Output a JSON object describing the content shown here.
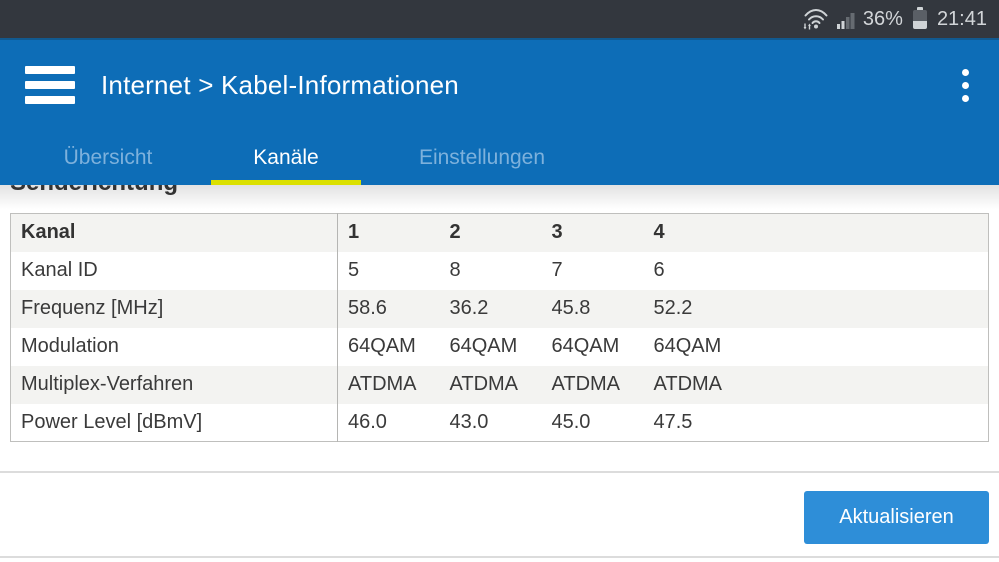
{
  "status_bar": {
    "battery_percent": "36%",
    "time": "21:41",
    "icons": [
      "wifi-arrows-icon",
      "mobile-signal-icon",
      "battery-icon"
    ]
  },
  "header": {
    "title": "Internet > Kabel-Informationen",
    "menu_icon": "hamburger-icon",
    "overflow_icon": "kebab-menu-icon",
    "tabs": [
      {
        "label": "Übersicht",
        "active": false
      },
      {
        "label": "Kanäle",
        "active": true
      },
      {
        "label": "Einstellungen",
        "active": false
      }
    ]
  },
  "section": {
    "heading": "Senderichtung"
  },
  "table": {
    "header_row": [
      "Kanal",
      "1",
      "2",
      "3",
      "4"
    ],
    "rows": [
      [
        "Kanal ID",
        "5",
        "8",
        "7",
        "6"
      ],
      [
        "Frequenz [MHz]",
        "58.6",
        "36.2",
        "45.8",
        "52.2"
      ],
      [
        "Modulation",
        "64QAM",
        "64QAM",
        "64QAM",
        "64QAM"
      ],
      [
        "Multiplex-Verfahren",
        "ATDMA",
        "ATDMA",
        "ATDMA",
        "ATDMA"
      ],
      [
        "Power Level [dBmV]",
        "46.0",
        "43.0",
        "45.0",
        "47.5"
      ]
    ]
  },
  "actions": {
    "refresh_label": "Aktualisieren"
  },
  "colors": {
    "status_bar_bg": "#33373e",
    "header_blue": "#0d6db7",
    "accent_lime": "#dbe000",
    "button_blue": "#2e8ed8",
    "inactive_tab": "#7db1dc"
  }
}
